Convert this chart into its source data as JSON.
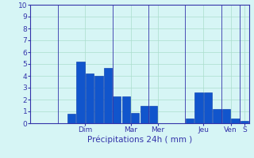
{
  "bars": [
    0.0,
    0.0,
    0.0,
    0.0,
    0.8,
    5.2,
    4.2,
    4.0,
    4.7,
    2.3,
    2.3,
    0.9,
    1.5,
    1.5,
    0.0,
    0.0,
    0.0,
    0.4,
    2.6,
    2.6,
    1.2,
    1.2,
    0.4,
    0.2
  ],
  "bar_color": "#1155cc",
  "bar_edgecolor": "#0033aa",
  "background_color": "#d6f5f5",
  "grid_color": "#aaddcc",
  "axis_color": "#3333aa",
  "tick_color": "#3333aa",
  "xlabel": "Précipitations 24h ( mm )",
  "xlabel_color": "#3333aa",
  "xlabel_fontsize": 7.5,
  "tick_label_fontsize": 6.5,
  "ylim": [
    0,
    10
  ],
  "yticks": [
    0,
    1,
    2,
    3,
    4,
    5,
    6,
    7,
    8,
    9,
    10
  ],
  "day_tick_positions": [
    5.5,
    10.5,
    13.5,
    18.5,
    21.5,
    23.0
  ],
  "day_tick_labels": [
    "Dim",
    "Mar",
    "Mer",
    "Jeu",
    "Ven",
    "S"
  ],
  "vline_positions": [
    2.5,
    8.5,
    12.5,
    16.5,
    20.5,
    22.5
  ],
  "n_bars": 24
}
